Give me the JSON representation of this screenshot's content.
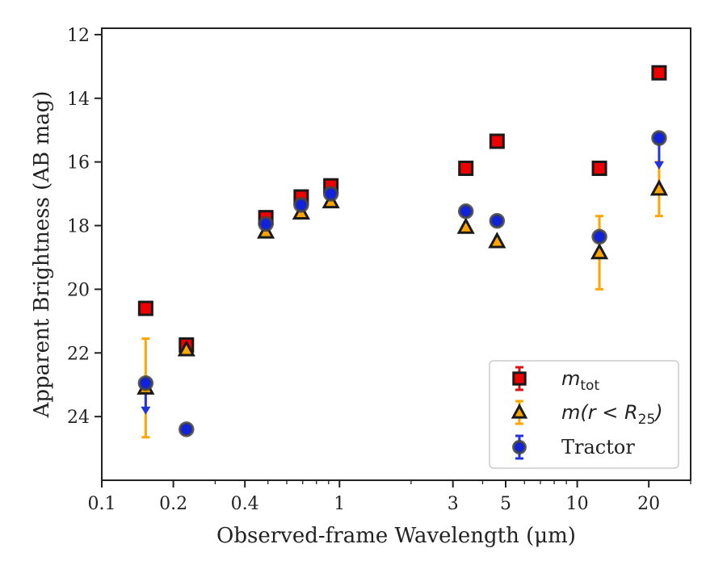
{
  "chart_data": {
    "type": "scatter",
    "xlabel": "Observed-frame Wavelength (μm)",
    "ylabel": "Apparent Brightness (AB mag)",
    "xscale": "log",
    "xlim": [
      0.1,
      30
    ],
    "ylim": [
      26.0,
      11.8
    ],
    "y_inverted": true,
    "x_ticks": [
      0.1,
      0.2,
      0.4,
      1,
      3,
      5,
      10,
      20
    ],
    "x_tick_labels": [
      "0.1",
      "0.2",
      "0.4",
      "1",
      "3",
      "5",
      "10",
      "20"
    ],
    "y_ticks": [
      12,
      14,
      16,
      18,
      20,
      22,
      24
    ],
    "y_tick_labels": [
      "12",
      "14",
      "16",
      "18",
      "20",
      "22",
      "24"
    ],
    "legend_position": "lower-right",
    "series": [
      {
        "name_main": "m",
        "name_sub": "tot",
        "marker": "square",
        "color": "#ee0000",
        "edge_color": "#1a1a1a",
        "errorbar_color": "#dd1111",
        "points": [
          {
            "x": 0.153,
            "y": 20.6
          },
          {
            "x": 0.227,
            "y": 21.75
          },
          {
            "x": 0.49,
            "y": 17.75
          },
          {
            "x": 0.69,
            "y": 17.1
          },
          {
            "x": 0.92,
            "y": 16.75
          },
          {
            "x": 3.4,
            "y": 16.2
          },
          {
            "x": 4.6,
            "y": 15.35
          },
          {
            "x": 12.4,
            "y": 16.2
          },
          {
            "x": 22.1,
            "y": 13.2
          }
        ]
      },
      {
        "name_main": "m(r < R",
        "name_sub": "25",
        "name_close": ")",
        "marker": "triangle",
        "color": "#ffa500",
        "edge_color": "#1a1a1a",
        "errorbar_color": "#ffa500",
        "points": [
          {
            "x": 0.153,
            "y": 23.1,
            "yerr_low": 1.55,
            "yerr_high": 1.55
          },
          {
            "x": 0.227,
            "y": 21.9
          },
          {
            "x": 0.49,
            "y": 18.2
          },
          {
            "x": 0.69,
            "y": 17.6
          },
          {
            "x": 0.92,
            "y": 17.25
          },
          {
            "x": 3.4,
            "y": 18.05
          },
          {
            "x": 4.6,
            "y": 18.5
          },
          {
            "x": 12.4,
            "y": 18.85,
            "yerr_low": 1.15,
            "yerr_high": 1.15
          },
          {
            "x": 22.1,
            "y": 16.85,
            "yerr_low": 0.85,
            "yerr_high": 0.85
          }
        ]
      },
      {
        "name_main": "Tractor",
        "marker": "circle",
        "color": "#1122dd",
        "edge_color": "#444444",
        "errorbar_color": "#2233dd",
        "points": [
          {
            "x": 0.153,
            "y": 22.95,
            "upper_limit": true
          },
          {
            "x": 0.227,
            "y": 24.4
          },
          {
            "x": 0.49,
            "y": 17.95
          },
          {
            "x": 0.69,
            "y": 17.35
          },
          {
            "x": 0.92,
            "y": 17.0
          },
          {
            "x": 3.4,
            "y": 17.55
          },
          {
            "x": 4.6,
            "y": 17.85
          },
          {
            "x": 12.4,
            "y": 18.35
          },
          {
            "x": 22.1,
            "y": 15.25,
            "upper_limit": true
          }
        ]
      }
    ]
  }
}
